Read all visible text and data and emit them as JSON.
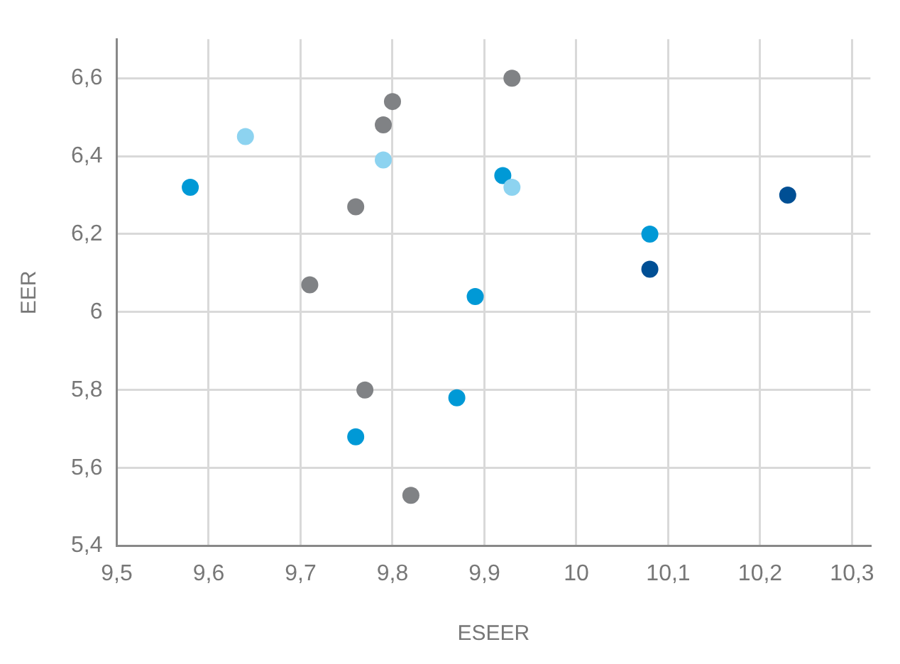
{
  "chart_data": {
    "type": "scatter",
    "xlabel": "ESEER",
    "ylabel": "EER",
    "xlim": [
      9.5,
      10.32
    ],
    "ylim": [
      5.4,
      6.7
    ],
    "xticks": [
      {
        "value": 9.5,
        "label": "9,5"
      },
      {
        "value": 9.6,
        "label": "9,6"
      },
      {
        "value": 9.7,
        "label": "9,7"
      },
      {
        "value": 9.8,
        "label": "9,8"
      },
      {
        "value": 9.9,
        "label": "9,9"
      },
      10,
      {
        "value": 10.1,
        "label": "10,1"
      },
      {
        "value": 10.2,
        "label": "10,2"
      },
      {
        "value": 10.3,
        "label": "10,3"
      }
    ],
    "yticks": [
      {
        "value": 5.4,
        "label": "5,4"
      },
      {
        "value": 5.6,
        "label": "5,6"
      },
      {
        "value": 5.8,
        "label": "5,8"
      },
      6,
      {
        "value": 6.2,
        "label": "6,2"
      },
      {
        "value": 6.4,
        "label": "6,4"
      },
      {
        "value": 6.6,
        "label": "6,6"
      }
    ],
    "grid": true,
    "legend": false,
    "marker": "circle",
    "series": [
      {
        "color": "#808285",
        "x": [
          9.93,
          9.8,
          9.79,
          9.76,
          9.71,
          9.77,
          9.82
        ],
        "values": [
          6.6,
          6.54,
          6.48,
          6.27,
          6.07,
          5.8,
          5.53
        ]
      },
      {
        "color": "#8dd3f0",
        "x": [
          9.64,
          9.79,
          9.93
        ],
        "values": [
          6.45,
          6.39,
          6.32
        ]
      },
      {
        "color": "#0099d6",
        "x": [
          9.58,
          9.92,
          10.08,
          9.89,
          9.87,
          9.76
        ],
        "values": [
          6.32,
          6.35,
          6.2,
          6.04,
          5.78,
          5.68
        ]
      },
      {
        "color": "#004f94",
        "x": [
          10.23,
          10.08
        ],
        "values": [
          6.3,
          6.11
        ]
      }
    ]
  }
}
